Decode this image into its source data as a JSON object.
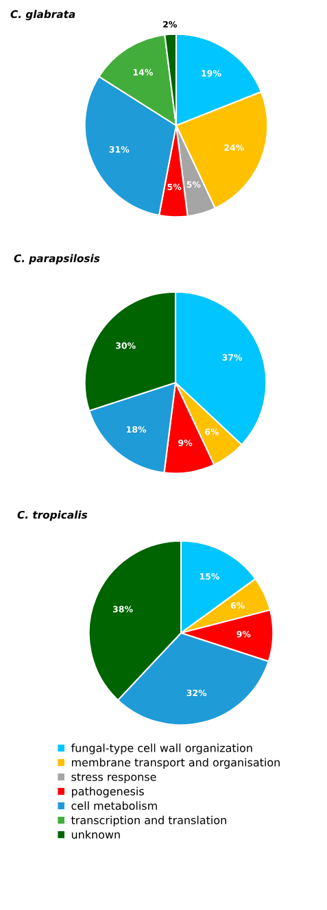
{
  "chart_data": [
    {
      "type": "pie",
      "title": "C. glabrata",
      "categories": [
        null,
        null,
        null,
        null,
        null,
        null,
        null
      ],
      "values": [
        19,
        24,
        5,
        5,
        31,
        14,
        2
      ],
      "value_labels": [
        "19%",
        "24%",
        "5%",
        "5%",
        "31%",
        "14%",
        "2%"
      ],
      "colors": [
        "#00c5ff",
        "#ffc000",
        "#a5a5a5",
        "#ff0000",
        "#1f9bd7",
        "#43ad3c",
        "#006400"
      ]
    },
    {
      "type": "pie",
      "title": "C. parapsilosis",
      "categories": [
        null,
        null,
        null,
        null,
        null,
        null,
        null
      ],
      "values": [
        37,
        6,
        0,
        9,
        18,
        0,
        30
      ],
      "value_labels": [
        "37%",
        "6%",
        null,
        "9%",
        "18%",
        null,
        "30%"
      ],
      "colors": [
        "#00c5ff",
        "#ffc000",
        "#a5a5a5",
        "#ff0000",
        "#1f9bd7",
        "#43ad3c",
        "#006400"
      ]
    },
    {
      "type": "pie",
      "title": "C. tropicalis",
      "categories": [
        "fungal-type cell wall organization",
        "membrane transport and organisation",
        "stress response",
        "pathogenesis",
        "cell metabolism",
        "transcription and translation",
        "unknown"
      ],
      "values": [
        15,
        6,
        0,
        9,
        32,
        0,
        38
      ],
      "value_labels": [
        "15%",
        "6%",
        null,
        "9%",
        "32%",
        null,
        "38%"
      ],
      "colors": [
        "#00c5ff",
        "#ffc000",
        "#a5a5a5",
        "#ff0000",
        "#1f9bd7",
        "#43ad3c",
        "#006400"
      ],
      "legend": "bottom"
    }
  ]
}
